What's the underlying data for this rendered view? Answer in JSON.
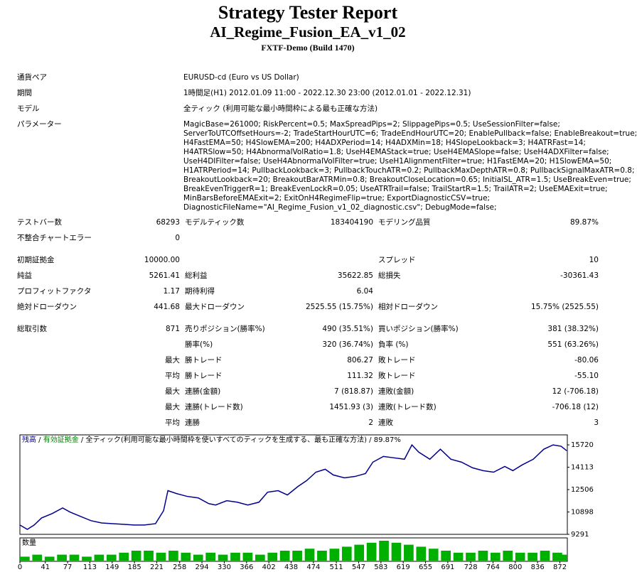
{
  "header": {
    "title": "Strategy Tester Report",
    "subtitle": "AI_Regime_Fusion_EA_v1_02",
    "server": "FXTF-Demo (Build 1470)"
  },
  "info": [
    {
      "label": "通貨ペア",
      "value": "EURUSD-cd (Euro vs US Dollar)"
    },
    {
      "label": "期間",
      "value": "1時間足(H1) 2012.01.09 11:00 - 2022.12.30 23:00 (2012.01.01 - 2022.12.31)"
    },
    {
      "label": "モデル",
      "value": "全ティック (利用可能な最小時間枠による最も正確な方法)"
    },
    {
      "label": "パラメーター",
      "lines": [
        "MagicBase=261000; RiskPercent=0.5; MaxSpreadPips=2; SlippagePips=0.5; UseSessionFilter=false;",
        "ServerToUTCOffsetHours=-2; TradeStartHourUTC=6; TradeEndHourUTC=20; EnablePullback=false; EnableBreakout=true;",
        "H4FastEMA=50; H4SlowEMA=200; H4ADXPeriod=14; H4ADXMin=18; H4SlopeLookback=3; H4ATRFast=14;",
        "H4ATRSlow=50; H4AbnormalVolRatio=1.8; UseH4EMAStack=true; UseH4EMASlope=false; UseH4ADXFilter=false;",
        "UseH4DIFilter=false; UseH4AbnormalVolFilter=true; UseH1AlignmentFilter=true; H1FastEMA=20; H1SlowEMA=50;",
        "H1ATRPeriod=14; PullbackLookback=3; PullbackTouchATR=0.2; PullbackMaxDepthATR=0.8; PullbackSignalMaxATR=0.8;",
        "BreakoutLookback=20; BreakoutBarATRMin=0.8; BreakoutCloseLocation=0.65; InitialSL_ATR=1.5; UseBreakEven=true;",
        "BreakEvenTriggerR=1; BreakEvenLockR=0.05; UseATRTrail=false; TrailStartR=1.5; TrailATR=2; UseEMAExit=true;",
        "MinBarsBeforeEMAExit=2; ExitOnH4RegimeFlip=true; ExportDiagnosticCSV=true;",
        "DiagnosticFileName=\"AI_Regime_Fusion_v1_02_diagnostic.csv\"; DebugMode=false;"
      ]
    }
  ],
  "stats": [
    [
      "テストバー数",
      "68293",
      "モデルティック数",
      "183404190",
      "モデリング品質",
      "89.87%"
    ],
    [
      "不整合チャートエラー",
      "0",
      null,
      null,
      null,
      null
    ],
    [
      "初期証拠金",
      "10000.00",
      null,
      null,
      "スプレッド",
      "10"
    ],
    [
      "純益",
      "5261.41",
      "総利益",
      "35622.85",
      "総損失",
      "-30361.43"
    ],
    [
      "プロフィットファクタ",
      "1.17",
      "期待利得",
      "6.04",
      null,
      null
    ],
    [
      "絶対ドローダウン",
      "441.68",
      "最大ドローダウン",
      "2525.55 (15.75%)",
      "相対ドローダウン",
      "15.75% (2525.55)"
    ],
    [
      "総取引数",
      "871",
      "売りポジション(勝率%)",
      "490 (35.51%)",
      "買いポジション(勝率%)",
      "381 (38.32%)"
    ],
    [
      null,
      null,
      "勝率(%)",
      "320 (36.74%)",
      "負率 (%)",
      "551 (63.26%)"
    ],
    [
      null,
      "最大",
      "勝トレード",
      "806.27",
      "敗トレード",
      "-80.06"
    ],
    [
      null,
      "平均",
      "勝トレード",
      "111.32",
      "敗トレード",
      "-55.10"
    ],
    [
      null,
      "最大",
      "連勝(金額)",
      "7 (818.87)",
      "連敗(金額)",
      "12 (-706.18)"
    ],
    [
      null,
      "最大",
      "連勝(トレード数)",
      "1451.93 (3)",
      "連敗(トレード数)",
      "-706.18 (12)"
    ],
    [
      null,
      "平均",
      "連勝",
      "2",
      "連敗",
      "3"
    ]
  ],
  "chart_data": [
    {
      "type": "line",
      "equity_label": "有効証拠金",
      "model_label": "全ティック(利用可能な最小時間枠を使いすべてのティックを生成する、最も正確な方法)",
      "quality": "89.87%",
      "x": [
        0,
        12,
        23,
        35,
        52,
        69,
        81,
        98,
        115,
        132,
        150,
        167,
        184,
        201,
        219,
        232,
        239,
        253,
        270,
        288,
        305,
        316,
        334,
        351,
        368,
        386,
        400,
        417,
        432,
        449,
        463,
        478,
        493,
        506,
        524,
        541,
        558,
        570,
        587,
        604,
        621,
        633,
        644,
        662,
        679,
        696,
        713,
        731,
        748,
        765,
        783,
        796,
        811,
        829,
        846,
        861,
        874,
        883
      ],
      "series": [
        {
          "name": "残高",
          "color": "#00008b",
          "values": [
            9960,
            9650,
            9960,
            10470,
            10780,
            11190,
            10890,
            10580,
            10270,
            10110,
            10060,
            10010,
            9960,
            9960,
            10060,
            10990,
            12430,
            12220,
            12020,
            11910,
            11500,
            11400,
            11710,
            11600,
            11400,
            11600,
            12320,
            12430,
            12120,
            12730,
            13150,
            13760,
            13970,
            13560,
            13350,
            13450,
            13660,
            14480,
            14890,
            14790,
            14690,
            15720,
            15200,
            14690,
            15410,
            14690,
            14480,
            14070,
            13870,
            13760,
            14170,
            13870,
            14280,
            14690,
            15410,
            15720,
            15620,
            15300
          ]
        }
      ],
      "xlim": [
        0,
        884
      ],
      "ylim": [
        9291,
        16440
      ],
      "yticks": [
        9291,
        10898,
        12506,
        14113,
        15720
      ],
      "xticks": [
        0,
        41,
        77,
        113,
        149,
        185,
        221,
        258,
        294,
        330,
        366,
        402,
        438,
        474,
        511,
        547,
        583,
        619,
        655,
        691,
        728,
        764,
        800,
        836,
        872
      ]
    },
    {
      "type": "bar",
      "title": "数量",
      "color": "#00b000",
      "ylim": [
        0,
        10
      ],
      "x": [
        0,
        20,
        40,
        60,
        80,
        100,
        120,
        140,
        160,
        180,
        200,
        220,
        240,
        260,
        280,
        300,
        320,
        340,
        360,
        380,
        400,
        420,
        440,
        460,
        480,
        500,
        520,
        540,
        560,
        580,
        600,
        620,
        640,
        660,
        680,
        700,
        720,
        740,
        760,
        780,
        800,
        820,
        840,
        860,
        880
      ],
      "values": [
        2,
        3,
        2,
        3,
        3,
        2,
        3,
        3,
        4,
        5,
        5,
        4,
        5,
        4,
        3,
        4,
        3,
        4,
        4,
        3,
        4,
        5,
        5,
        6,
        5,
        6,
        7,
        8,
        9,
        10,
        9,
        8,
        7,
        6,
        5,
        4,
        4,
        5,
        4,
        5,
        4,
        4,
        5,
        4,
        3
      ]
    }
  ]
}
